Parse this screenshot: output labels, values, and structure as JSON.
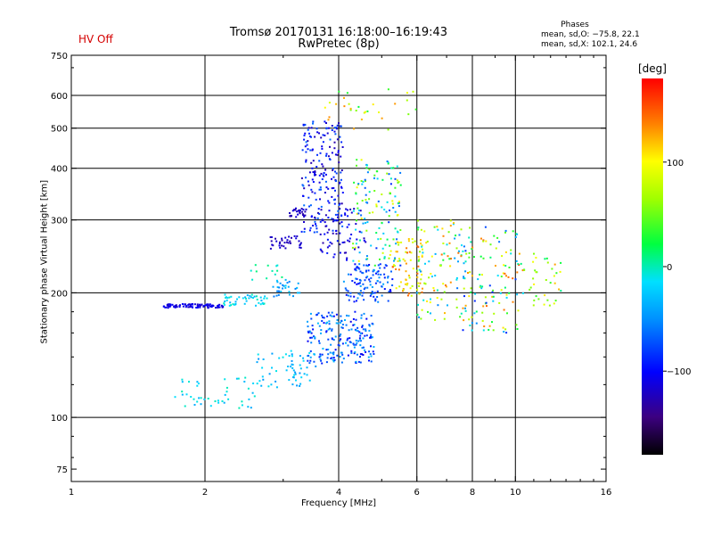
{
  "header": {
    "title_line1": "Tromsø 20170131 16:18:00–16:19:43",
    "title_line2": "RwPretec (8p)",
    "status": "HV Off",
    "status_color": "#d40000"
  },
  "phase_info": {
    "title": "Phases",
    "line1": "mean, sd,O: −75.8, 22.1",
    "line2": "mean, sd,X: 102.1, 24.6"
  },
  "colorbar": {
    "unit": "[deg]",
    "ticks": [
      "100",
      "0",
      "−100"
    ],
    "tick_values": [
      100,
      0,
      -100
    ],
    "range": [
      -180,
      180
    ]
  },
  "chart_data": {
    "type": "scatter",
    "xlabel": "Frequency [MHz]",
    "ylabel": "Stationary phase Virtual Height [km]",
    "xscale": "log",
    "yscale": "log",
    "xlim": [
      1,
      16
    ],
    "ylim": [
      70,
      750
    ],
    "xticks": [
      1,
      2,
      4,
      6,
      8,
      10,
      16
    ],
    "xtick_labels": [
      "1",
      "2",
      "4",
      "6",
      "8",
      "10",
      "16"
    ],
    "xgrid": [
      2,
      4,
      6,
      8,
      10
    ],
    "yticks": [
      75,
      100,
      200,
      300,
      400,
      500,
      600,
      750
    ],
    "ytick_labels": [
      "75",
      "100",
      "200",
      "300",
      "400",
      "500",
      "600",
      "750"
    ],
    "ygrid": [
      100,
      200,
      300,
      400,
      500,
      600
    ],
    "grid": true,
    "color_metric": "phase [deg]",
    "clusters": [
      {
        "x": [
          1.6,
          2.2
        ],
        "y": [
          184,
          188
        ],
        "phase": [
          -120,
          -100
        ],
        "n": 90
      },
      {
        "x": [
          2.2,
          2.8
        ],
        "y": [
          186,
          198
        ],
        "phase": [
          -40,
          0
        ],
        "n": 45
      },
      {
        "x": [
          2.8,
          3.3
        ],
        "y": [
          195,
          215
        ],
        "phase": [
          -60,
          -20
        ],
        "n": 30
      },
      {
        "x": [
          3.1,
          3.4
        ],
        "y": [
          305,
          320
        ],
        "phase": [
          -130,
          -110
        ],
        "n": 30
      },
      {
        "x": [
          2.8,
          3.3
        ],
        "y": [
          255,
          275
        ],
        "phase": [
          -130,
          -110
        ],
        "n": 35
      },
      {
        "x": [
          3.3,
          4.1
        ],
        "y": [
          280,
          520
        ],
        "phase": [
          -130,
          -60
        ],
        "n": 200
      },
      {
        "x": [
          3.4,
          4.8
        ],
        "y": [
          135,
          180
        ],
        "phase": [
          -110,
          -30
        ],
        "n": 200
      },
      {
        "x": [
          4.1,
          5.3
        ],
        "y": [
          190,
          235
        ],
        "phase": [
          -100,
          -40
        ],
        "n": 110
      },
      {
        "x": [
          4.3,
          5.6
        ],
        "y": [
          230,
          420
        ],
        "phase": [
          -90,
          100
        ],
        "n": 140
      },
      {
        "x": [
          5.2,
          6.2
        ],
        "y": [
          195,
          270
        ],
        "phase": [
          60,
          150
        ],
        "n": 70
      },
      {
        "x": [
          6.0,
          8.0
        ],
        "y": [
          170,
          300
        ],
        "phase": [
          -60,
          150
        ],
        "n": 110
      },
      {
        "x": [
          7.6,
          10.2
        ],
        "y": [
          160,
          290
        ],
        "phase": [
          -90,
          160
        ],
        "n": 110
      },
      {
        "x": [
          10.2,
          12.8
        ],
        "y": [
          185,
          250
        ],
        "phase": [
          -20,
          140
        ],
        "n": 40
      },
      {
        "x": [
          1.7,
          2.6
        ],
        "y": [
          105,
          125
        ],
        "phase": [
          -40,
          0
        ],
        "n": 45
      },
      {
        "x": [
          2.6,
          3.6
        ],
        "y": [
          118,
          145
        ],
        "phase": [
          -50,
          -10
        ],
        "n": 60
      },
      {
        "x": [
          3.6,
          4.6
        ],
        "y": [
          240,
          320
        ],
        "phase": [
          -130,
          -90
        ],
        "n": 60
      },
      {
        "x": [
          2.5,
          3.0
        ],
        "y": [
          215,
          235
        ],
        "phase": [
          -10,
          10
        ],
        "n": 12
      },
      {
        "x": [
          3.7,
          6.6
        ],
        "y": [
          480,
          640
        ],
        "phase": [
          20,
          140
        ],
        "n": 30
      }
    ]
  }
}
